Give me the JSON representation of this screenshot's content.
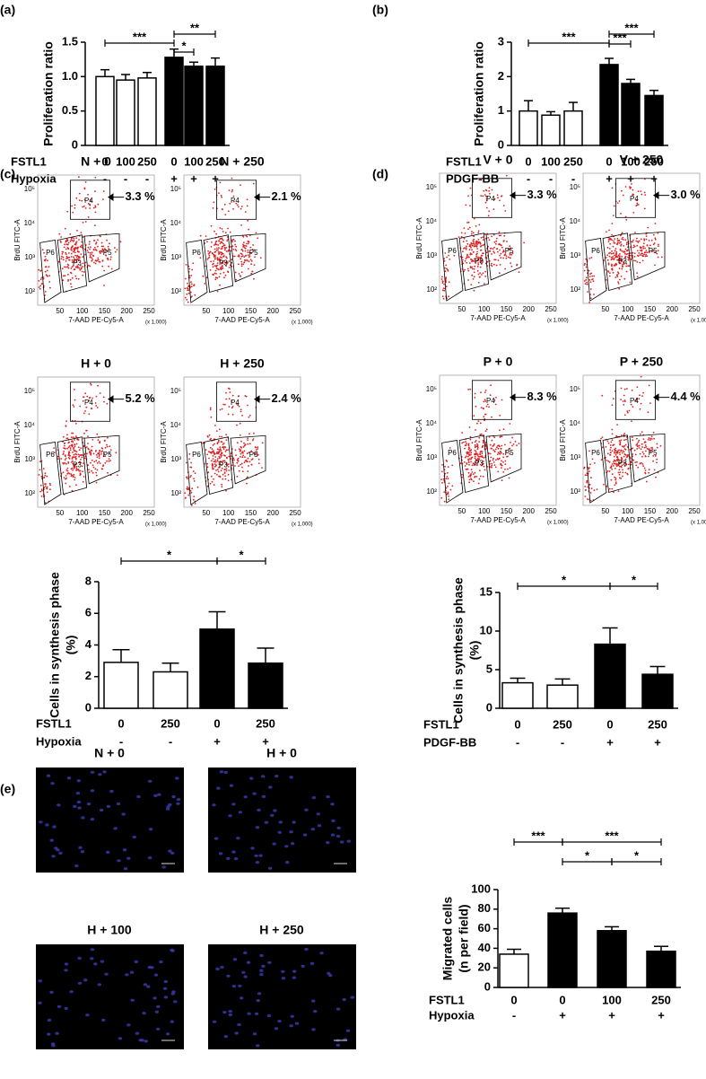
{
  "panel_labels": [
    "(a)",
    "(b)",
    "(c)",
    "(d)",
    "(e)"
  ],
  "chart_data": [
    {
      "type": "bar",
      "ylabel": [
        "Proliferation ratio"
      ],
      "categories": [
        "0",
        "100",
        "250",
        "0",
        "100",
        "250"
      ],
      "row_labels": [
        "FSTL1",
        "Hypoxia"
      ],
      "conditions": [
        "-",
        "-",
        "-",
        "+",
        "+",
        "+"
      ],
      "values": [
        1.0,
        0.95,
        0.98,
        1.28,
        1.15,
        1.15
      ],
      "errors": [
        0.1,
        0.08,
        0.08,
        0.12,
        0.06,
        0.12
      ],
      "colors": [
        "#ffffff",
        "#ffffff",
        "#ffffff",
        "#000000",
        "#000000",
        "#000000"
      ],
      "ylim": [
        0,
        1.5
      ],
      "yticks": [
        0,
        0.5,
        {
          "value": 1,
          "label": "1.0"
        },
        1.5
      ],
      "annotations": [
        {
          "label": "***",
          "from": 0,
          "to": 3
        },
        {
          "label": "*",
          "from": 3,
          "to": 4
        },
        {
          "label": "**",
          "from": 3,
          "to": 5
        }
      ]
    },
    {
      "type": "bar",
      "ylabel": [
        "Proliferation ratio"
      ],
      "categories": [
        "0",
        "100",
        "250",
        "0",
        "100",
        "250"
      ],
      "row_labels": [
        "FSTL1",
        "PDGF-BB"
      ],
      "conditions": [
        "-",
        "-",
        "-",
        "+",
        "+",
        "+"
      ],
      "values": [
        1.0,
        0.88,
        1.0,
        2.35,
        1.8,
        1.45
      ],
      "errors": [
        0.3,
        0.1,
        0.25,
        0.18,
        0.12,
        0.15
      ],
      "colors": [
        "#ffffff",
        "#ffffff",
        "#ffffff",
        "#000000",
        "#000000",
        "#000000"
      ],
      "ylim": [
        0,
        3
      ],
      "yticks": [
        0,
        1,
        2,
        3
      ],
      "annotations": [
        {
          "label": "***",
          "from": 0,
          "to": 3
        },
        {
          "label": "***",
          "from": 3,
          "to": 4
        },
        {
          "label": "***",
          "from": 3,
          "to": 5
        }
      ]
    },
    {
      "type": "bar",
      "ylabel": [
        "Cells in synthesis phase",
        "(%)"
      ],
      "categories": [
        "0",
        "250",
        "0",
        "250"
      ],
      "row_labels": [
        "FSTL1",
        "Hypoxia"
      ],
      "conditions": [
        "-",
        "-",
        "+",
        "+"
      ],
      "values": [
        2.9,
        2.3,
        5.0,
        2.85
      ],
      "errors": [
        0.8,
        0.55,
        1.1,
        0.95
      ],
      "colors": [
        "#ffffff",
        "#ffffff",
        "#000000",
        "#000000"
      ],
      "ylim": [
        0,
        8
      ],
      "yticks": [
        0,
        2,
        4,
        6,
        8
      ],
      "annotations": [
        {
          "label": "*",
          "from": 0,
          "to": 2
        },
        {
          "label": "*",
          "from": 2,
          "to": 3
        }
      ]
    },
    {
      "type": "bar",
      "ylabel": [
        "Cells in synthesis phase",
        "(%)"
      ],
      "categories": [
        "0",
        "250",
        "0",
        "250"
      ],
      "row_labels": [
        "FSTL1",
        "PDGF-BB"
      ],
      "conditions": [
        "-",
        "-",
        "+",
        "+"
      ],
      "values": [
        3.3,
        3.0,
        8.3,
        4.4
      ],
      "errors": [
        0.6,
        0.8,
        2.1,
        1.0
      ],
      "colors": [
        "#ffffff",
        "#ffffff",
        "#000000",
        "#000000"
      ],
      "ylim": [
        0,
        15
      ],
      "yticks": [
        0,
        5,
        10,
        15
      ],
      "annotations": [
        {
          "label": "*",
          "from": 0,
          "to": 2
        },
        {
          "label": "*",
          "from": 2,
          "to": 3
        }
      ]
    },
    {
      "type": "bar",
      "ylabel": [
        "Migrated cells",
        "(n per field)"
      ],
      "categories": [
        "0",
        "0",
        "100",
        "250"
      ],
      "row_labels": [
        "FSTL1",
        "Hypoxia"
      ],
      "conditions": [
        "-",
        "+",
        "+",
        "+"
      ],
      "values": [
        34,
        76,
        58,
        37
      ],
      "errors": [
        5,
        5,
        4,
        5
      ],
      "colors": [
        "#ffffff",
        "#000000",
        "#000000",
        "#000000"
      ],
      "ylim": [
        0,
        100
      ],
      "yticks": [
        0,
        20,
        40,
        60,
        80,
        100
      ],
      "annotations": [
        {
          "label": "***",
          "from": 0,
          "to": 1
        },
        {
          "label": "***",
          "from": 1,
          "to": 3
        },
        {
          "label": "*",
          "from": 1,
          "to": 2
        },
        {
          "label": "*",
          "from": 2,
          "to": 3
        }
      ]
    }
  ],
  "flow_plots": {
    "axis": {
      "ylabel": "BrdU FITC-A",
      "xlabel": "7-AAD PE-Cy5-A",
      "xunit": "(x 1,000)",
      "yticks": [
        "10²",
        "10³",
        "10⁴",
        "10⁵"
      ],
      "xticks": [
        50,
        100,
        150,
        200,
        250
      ],
      "gates": [
        "P3",
        "P4",
        "P5",
        "P6"
      ]
    },
    "plots": [
      {
        "title": "N + 0",
        "percent": "3.3 %"
      },
      {
        "title": "N + 250",
        "percent": "2.1 %"
      },
      {
        "title": "H + 0",
        "percent": "5.2 %"
      },
      {
        "title": "H + 250",
        "percent": "2.4 %"
      },
      {
        "title": "V + 0",
        "percent": "3.3 %"
      },
      {
        "title": "V + 250",
        "percent": "3.0 %"
      },
      {
        "title": "P + 0",
        "percent": "8.3 %"
      },
      {
        "title": "P + 250",
        "percent": "4.4 %"
      }
    ]
  },
  "micrographs": [
    "N + 0",
    "H + 0",
    "H + 100",
    "H + 250"
  ]
}
